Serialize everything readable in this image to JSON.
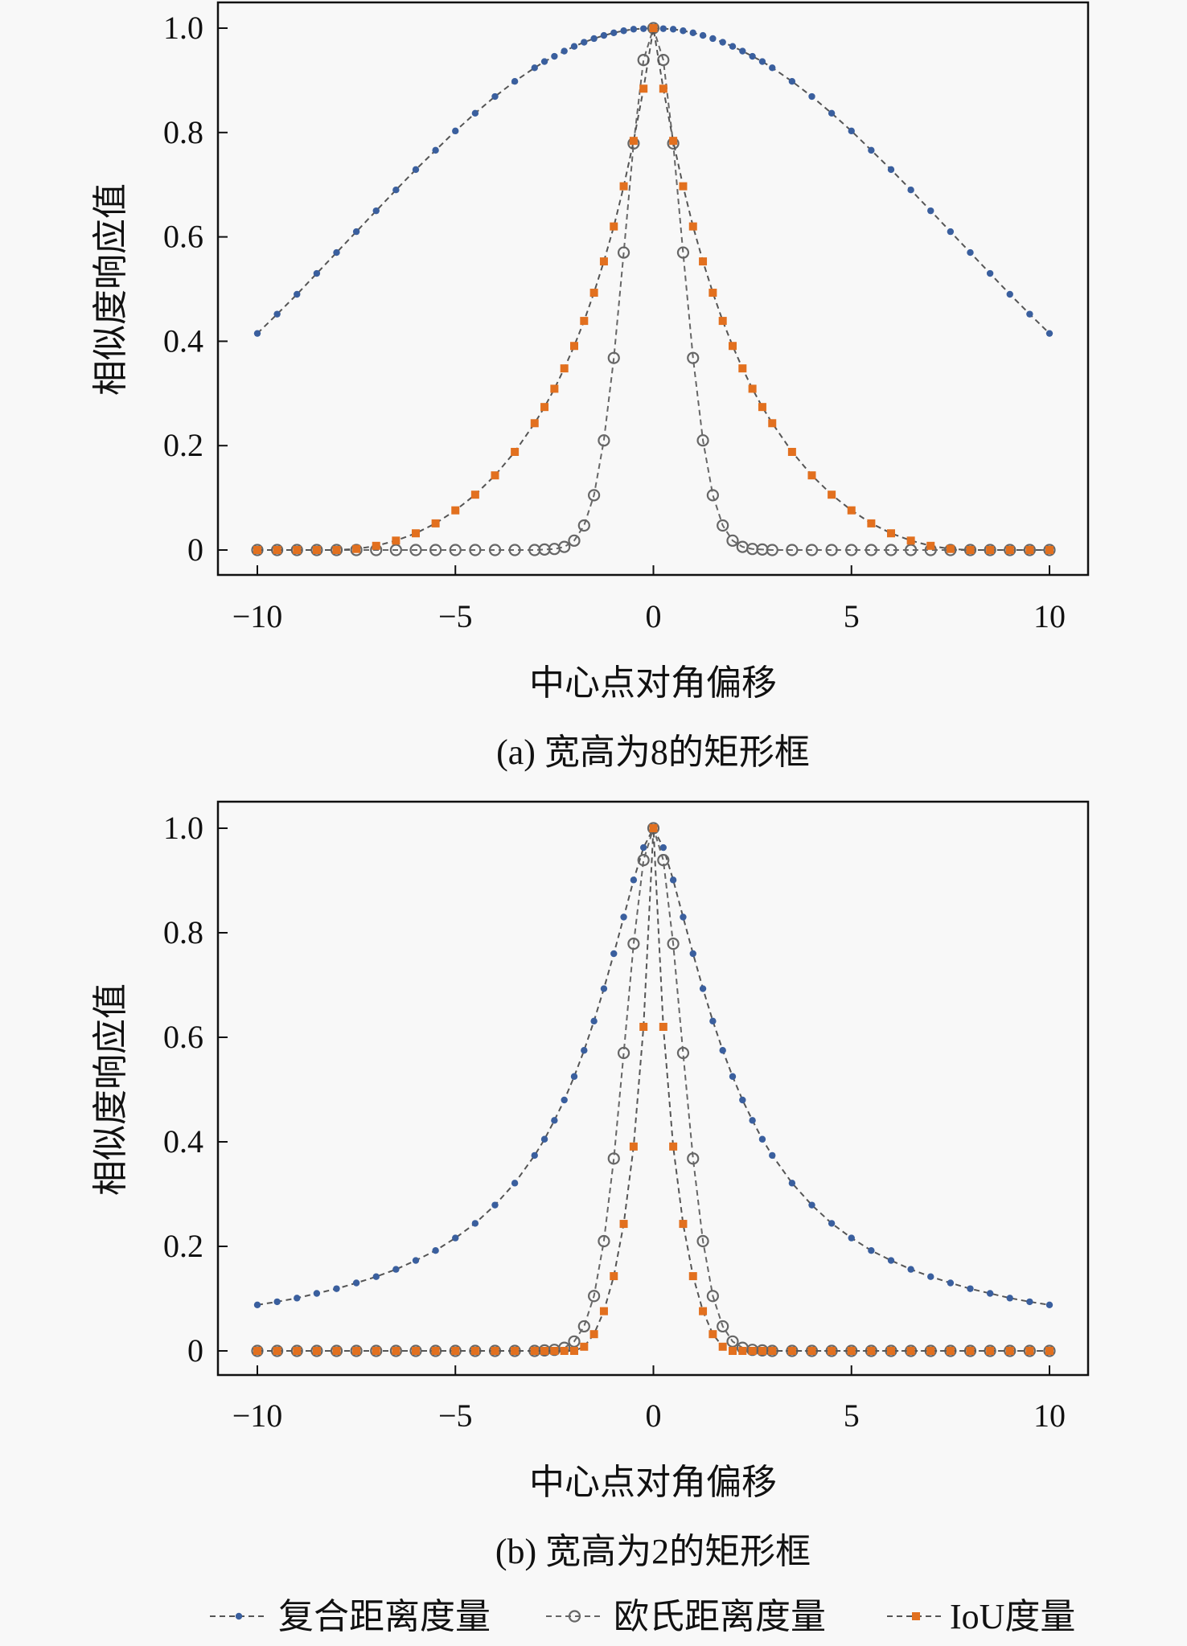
{
  "chart_data": [
    {
      "type": "line",
      "caption": "(a) 宽高为8的矩形框",
      "xlabel": "中心点对角偏移",
      "ylabel": "相似度响应值",
      "xlim": [
        -10,
        10
      ],
      "ylim": [
        0,
        1
      ],
      "xticks": [
        -10,
        -5,
        0,
        5,
        10
      ],
      "xtick_labels": [
        "−10",
        "−5",
        "0",
        "5",
        "10"
      ],
      "yticks": [
        0,
        0.2,
        0.4,
        0.6,
        0.8,
        1.0
      ],
      "ytick_labels": [
        "0",
        "0.2",
        "0.4",
        "0.6",
        "0.8",
        "1.0"
      ],
      "grid": false,
      "x": [
        -10,
        -9.5,
        -9,
        -8.5,
        -8,
        -7.5,
        -7,
        -6.5,
        -6,
        -5.5,
        -5,
        -4.5,
        -4,
        -3.5,
        -3,
        -2.75,
        -2.5,
        -2.25,
        -2,
        -1.75,
        -1.5,
        -1.25,
        -1,
        -0.75,
        -0.5,
        -0.25,
        0,
        0.25,
        0.5,
        0.75,
        1,
        1.25,
        1.5,
        1.75,
        2,
        2.25,
        2.5,
        2.75,
        3,
        3.5,
        4,
        4.5,
        5,
        5.5,
        6,
        6.5,
        7,
        7.5,
        8,
        8.5,
        9,
        9.5,
        10
      ],
      "series": [
        {
          "name": "复合距离度量",
          "values": [
            0.415,
            0.452,
            0.49,
            0.53,
            0.57,
            0.61,
            0.65,
            0.69,
            0.729,
            0.766,
            0.803,
            0.837,
            0.869,
            0.898,
            0.924,
            0.936,
            0.946,
            0.956,
            0.965,
            0.973,
            0.98,
            0.986,
            0.991,
            0.995,
            0.998,
            0.999,
            1,
            0.999,
            0.998,
            0.995,
            0.991,
            0.986,
            0.98,
            0.973,
            0.965,
            0.956,
            0.946,
            0.936,
            0.924,
            0.898,
            0.869,
            0.837,
            0.803,
            0.766,
            0.729,
            0.69,
            0.65,
            0.61,
            0.57,
            0.53,
            0.49,
            0.452,
            0.415
          ]
        },
        {
          "name": "欧氏距离度量",
          "values": [
            0,
            0,
            0,
            0,
            0,
            0,
            0,
            0,
            0,
            0,
            0,
            0,
            0,
            0,
            0,
            0.001,
            0.002,
            0.006,
            0.018,
            0.047,
            0.105,
            0.21,
            0.368,
            0.57,
            0.779,
            0.939,
            1,
            0.939,
            0.779,
            0.57,
            0.368,
            0.21,
            0.105,
            0.047,
            0.018,
            0.006,
            0.002,
            0.001,
            0,
            0,
            0,
            0,
            0,
            0,
            0,
            0,
            0,
            0,
            0,
            0,
            0,
            0,
            0
          ]
        },
        {
          "name": "IoU度量",
          "values": [
            0,
            0,
            0,
            0,
            0,
            0.002,
            0.008,
            0.018,
            0.032,
            0.051,
            0.076,
            0.106,
            0.143,
            0.188,
            0.243,
            0.274,
            0.309,
            0.348,
            0.391,
            0.439,
            0.493,
            0.553,
            0.62,
            0.697,
            0.784,
            0.884,
            1,
            0.884,
            0.784,
            0.697,
            0.62,
            0.553,
            0.493,
            0.439,
            0.391,
            0.348,
            0.309,
            0.274,
            0.243,
            0.188,
            0.143,
            0.106,
            0.076,
            0.051,
            0.032,
            0.018,
            0.008,
            0.002,
            0,
            0,
            0,
            0,
            0
          ]
        }
      ]
    },
    {
      "type": "line",
      "caption": "(b) 宽高为2的矩形框",
      "xlabel": "中心点对角偏移",
      "ylabel": "相似度响应值",
      "xlim": [
        -10,
        10
      ],
      "ylim": [
        0,
        1
      ],
      "xticks": [
        -10,
        -5,
        0,
        5,
        10
      ],
      "xtick_labels": [
        "−10",
        "−5",
        "0",
        "5",
        "10"
      ],
      "yticks": [
        0,
        0.2,
        0.4,
        0.6,
        0.8,
        1.0
      ],
      "ytick_labels": [
        "0",
        "0.2",
        "0.4",
        "0.6",
        "0.8",
        "1.0"
      ],
      "grid": false,
      "x": [
        -10,
        -9.5,
        -9,
        -8.5,
        -8,
        -7.5,
        -7,
        -6.5,
        -6,
        -5.5,
        -5,
        -4.5,
        -4,
        -3.5,
        -3,
        -2.75,
        -2.5,
        -2.25,
        -2,
        -1.75,
        -1.5,
        -1.25,
        -1,
        -0.75,
        -0.5,
        -0.25,
        0,
        0.25,
        0.5,
        0.75,
        1,
        1.25,
        1.5,
        1.75,
        2,
        2.25,
        2.5,
        2.75,
        3,
        3.5,
        4,
        4.5,
        5,
        5.5,
        6,
        6.5,
        7,
        7.5,
        8,
        8.5,
        9,
        9.5,
        10
      ],
      "series": [
        {
          "name": "复合距离度量",
          "values": [
            0.088,
            0.094,
            0.101,
            0.11,
            0.119,
            0.13,
            0.142,
            0.156,
            0.173,
            0.192,
            0.216,
            0.244,
            0.279,
            0.321,
            0.374,
            0.405,
            0.441,
            0.48,
            0.525,
            0.575,
            0.631,
            0.693,
            0.76,
            0.83,
            0.901,
            0.963,
            1,
            0.963,
            0.901,
            0.83,
            0.76,
            0.693,
            0.631,
            0.575,
            0.525,
            0.48,
            0.441,
            0.405,
            0.374,
            0.321,
            0.279,
            0.244,
            0.216,
            0.192,
            0.173,
            0.156,
            0.142,
            0.13,
            0.119,
            0.11,
            0.101,
            0.094,
            0.088
          ]
        },
        {
          "name": "欧氏距离度量",
          "values": [
            0,
            0,
            0,
            0,
            0,
            0,
            0,
            0,
            0,
            0,
            0,
            0,
            0,
            0,
            0,
            0.001,
            0.002,
            0.006,
            0.018,
            0.047,
            0.105,
            0.21,
            0.368,
            0.57,
            0.779,
            0.939,
            1,
            0.939,
            0.779,
            0.57,
            0.368,
            0.21,
            0.105,
            0.047,
            0.018,
            0.006,
            0.002,
            0.001,
            0,
            0,
            0,
            0,
            0,
            0,
            0,
            0,
            0,
            0,
            0,
            0,
            0,
            0,
            0
          ]
        },
        {
          "name": "IoU度量",
          "values": [
            0,
            0,
            0,
            0,
            0,
            0,
            0,
            0,
            0,
            0,
            0,
            0,
            0,
            0,
            0,
            0,
            0,
            0,
            0,
            0.008,
            0.032,
            0.076,
            0.143,
            0.243,
            0.391,
            0.62,
            1,
            0.62,
            0.391,
            0.243,
            0.143,
            0.076,
            0.032,
            0.008,
            0,
            0,
            0,
            0,
            0,
            0,
            0,
            0,
            0,
            0,
            0,
            0,
            0,
            0,
            0,
            0,
            0,
            0,
            0
          ]
        }
      ]
    }
  ],
  "legend": {
    "placement": "bottom",
    "items": [
      {
        "label": "复合距离度量",
        "marker": "dot",
        "color": "#3a5f9e",
        "line_color": "#555555"
      },
      {
        "label": "欧氏距离度量",
        "marker": "open-circle",
        "color": "#666666",
        "line_color": "#666666"
      },
      {
        "label": "IoU度量",
        "marker": "square",
        "color": "#e2701f",
        "line_color": "#555555"
      }
    ]
  }
}
